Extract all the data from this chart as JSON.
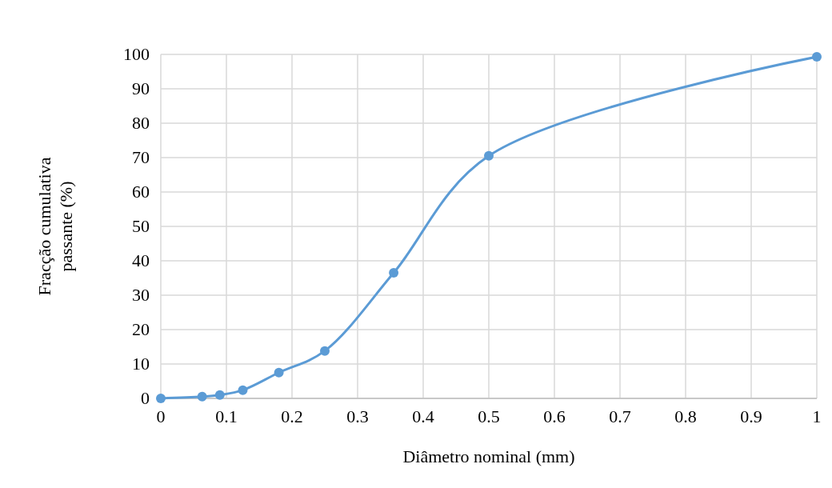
{
  "chart_data": {
    "type": "line",
    "xlabel": "Diâmetro nominal (mm)",
    "ylabel": "Fracção cumulativa passante (%)",
    "x": [
      0,
      0.063,
      0.09,
      0.125,
      0.18,
      0.25,
      0.355,
      0.5,
      1
    ],
    "series": [
      {
        "color": "#5b9bd5",
        "values": [
          0,
          0.5,
          1,
          2.4,
          7.5,
          13.8,
          36.5,
          70.5,
          99.3
        ]
      }
    ],
    "xlim": [
      0,
      1
    ],
    "xticks": [
      0,
      0.1,
      0.2,
      0.3,
      0.4,
      0.5,
      0.6,
      0.7,
      0.8,
      0.9,
      1
    ],
    "ylim": [
      0,
      100
    ],
    "yticks": [
      0,
      10,
      20,
      30,
      40,
      50,
      60,
      70,
      80,
      90,
      100
    ],
    "grid": true,
    "marker": "circle"
  }
}
